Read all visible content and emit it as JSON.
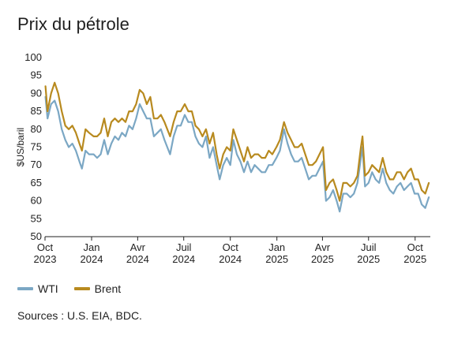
{
  "title": "Prix du pétrole",
  "source": "Sources : U.S. EIA, BDC.",
  "legend": {
    "wti": "WTI",
    "brent": "Brent"
  },
  "colors": {
    "wti": "#7ba7c4",
    "brent": "#b88a1f",
    "axis": "#222222"
  },
  "chart_data": {
    "type": "line",
    "title": "Prix du pétrole",
    "xlabel": "",
    "ylabel": "$US/baril",
    "ylim": [
      50,
      100
    ],
    "yticks": [
      50,
      55,
      60,
      65,
      70,
      75,
      80,
      85,
      90,
      95,
      100
    ],
    "xlim": [
      "2023-10-01",
      "2025-10-31"
    ],
    "xticks": [
      {
        "date": "2023-10-01",
        "line1": "Oct",
        "line2": "2023"
      },
      {
        "date": "2024-01-01",
        "line1": "Jan",
        "line2": "2024"
      },
      {
        "date": "2024-04-01",
        "line1": "Avr",
        "line2": "2024"
      },
      {
        "date": "2024-07-01",
        "line1": "Juil",
        "line2": "2024"
      },
      {
        "date": "2024-10-01",
        "line1": "Oct",
        "line2": "2024"
      },
      {
        "date": "2025-01-01",
        "line1": "Jan",
        "line2": "2025"
      },
      {
        "date": "2025-04-01",
        "line1": "Avr",
        "line2": "2025"
      },
      {
        "date": "2025-07-01",
        "line1": "Juil",
        "line2": "2025"
      },
      {
        "date": "2025-10-01",
        "line1": "Oct",
        "line2": "2025"
      }
    ],
    "grid": false,
    "legend_position": "bottom-left",
    "series": [
      {
        "name": "WTI",
        "color": "#7ba7c4",
        "points": [
          [
            "2023-10-02",
            89
          ],
          [
            "2023-10-06",
            83
          ],
          [
            "2023-10-13",
            87
          ],
          [
            "2023-10-20",
            88
          ],
          [
            "2023-10-27",
            85
          ],
          [
            "2023-11-03",
            80
          ],
          [
            "2023-11-10",
            77
          ],
          [
            "2023-11-17",
            75
          ],
          [
            "2023-11-24",
            76
          ],
          [
            "2023-12-01",
            74
          ],
          [
            "2023-12-08",
            71
          ],
          [
            "2023-12-13",
            69
          ],
          [
            "2023-12-20",
            74
          ],
          [
            "2023-12-27",
            73
          ],
          [
            "2024-01-05",
            73
          ],
          [
            "2024-01-12",
            72
          ],
          [
            "2024-01-19",
            73
          ],
          [
            "2024-01-26",
            77
          ],
          [
            "2024-02-02",
            73
          ],
          [
            "2024-02-09",
            76
          ],
          [
            "2024-02-16",
            78
          ],
          [
            "2024-02-23",
            77
          ],
          [
            "2024-03-01",
            79
          ],
          [
            "2024-03-08",
            78
          ],
          [
            "2024-03-15",
            81
          ],
          [
            "2024-03-22",
            80
          ],
          [
            "2024-03-29",
            83
          ],
          [
            "2024-04-05",
            87
          ],
          [
            "2024-04-12",
            85
          ],
          [
            "2024-04-19",
            83
          ],
          [
            "2024-04-26",
            83
          ],
          [
            "2024-05-03",
            78
          ],
          [
            "2024-05-10",
            79
          ],
          [
            "2024-05-17",
            80
          ],
          [
            "2024-05-24",
            77
          ],
          [
            "2024-06-04",
            73
          ],
          [
            "2024-06-11",
            78
          ],
          [
            "2024-06-18",
            81
          ],
          [
            "2024-06-25",
            81
          ],
          [
            "2024-07-03",
            84
          ],
          [
            "2024-07-10",
            82
          ],
          [
            "2024-07-17",
            82
          ],
          [
            "2024-07-24",
            78
          ],
          [
            "2024-07-31",
            76
          ],
          [
            "2024-08-07",
            75
          ],
          [
            "2024-08-14",
            78
          ],
          [
            "2024-08-21",
            72
          ],
          [
            "2024-08-28",
            75
          ],
          [
            "2024-09-04",
            70
          ],
          [
            "2024-09-10",
            66
          ],
          [
            "2024-09-17",
            70
          ],
          [
            "2024-09-24",
            72
          ],
          [
            "2024-10-01",
            70
          ],
          [
            "2024-10-07",
            77
          ],
          [
            "2024-10-14",
            73
          ],
          [
            "2024-10-21",
            71
          ],
          [
            "2024-10-28",
            68
          ],
          [
            "2024-11-04",
            71
          ],
          [
            "2024-11-11",
            68
          ],
          [
            "2024-11-18",
            70
          ],
          [
            "2024-11-25",
            69
          ],
          [
            "2024-12-02",
            68
          ],
          [
            "2024-12-09",
            68
          ],
          [
            "2024-12-16",
            70
          ],
          [
            "2024-12-23",
            70
          ],
          [
            "2024-12-31",
            72
          ],
          [
            "2025-01-07",
            74
          ],
          [
            "2025-01-15",
            80
          ],
          [
            "2025-01-22",
            76
          ],
          [
            "2025-01-29",
            73
          ],
          [
            "2025-02-05",
            71
          ],
          [
            "2025-02-12",
            71
          ],
          [
            "2025-02-19",
            72
          ],
          [
            "2025-02-26",
            69
          ],
          [
            "2025-03-05",
            66
          ],
          [
            "2025-03-12",
            67
          ],
          [
            "2025-03-19",
            67
          ],
          [
            "2025-03-26",
            69
          ],
          [
            "2025-04-02",
            71
          ],
          [
            "2025-04-08",
            60
          ],
          [
            "2025-04-15",
            61
          ],
          [
            "2025-04-22",
            63
          ],
          [
            "2025-04-29",
            60
          ],
          [
            "2025-05-05",
            57
          ],
          [
            "2025-05-12",
            62
          ],
          [
            "2025-05-19",
            62
          ],
          [
            "2025-05-26",
            61
          ],
          [
            "2025-06-02",
            62
          ],
          [
            "2025-06-09",
            65
          ],
          [
            "2025-06-16",
            72
          ],
          [
            "2025-06-19",
            75
          ],
          [
            "2025-06-24",
            64
          ],
          [
            "2025-07-01",
            65
          ],
          [
            "2025-07-08",
            68
          ],
          [
            "2025-07-15",
            66
          ],
          [
            "2025-07-22",
            65
          ],
          [
            "2025-07-29",
            69
          ],
          [
            "2025-08-05",
            65
          ],
          [
            "2025-08-12",
            63
          ],
          [
            "2025-08-19",
            62
          ],
          [
            "2025-08-26",
            64
          ],
          [
            "2025-09-02",
            65
          ],
          [
            "2025-09-09",
            63
          ],
          [
            "2025-09-16",
            64
          ],
          [
            "2025-09-23",
            65
          ],
          [
            "2025-09-30",
            62
          ],
          [
            "2025-10-07",
            62
          ],
          [
            "2025-10-14",
            59
          ],
          [
            "2025-10-21",
            58
          ],
          [
            "2025-10-28",
            61
          ]
        ]
      },
      {
        "name": "Brent",
        "color": "#b88a1f",
        "points": [
          [
            "2023-10-02",
            92
          ],
          [
            "2023-10-06",
            85
          ],
          [
            "2023-10-13",
            90
          ],
          [
            "2023-10-20",
            93
          ],
          [
            "2023-10-27",
            90
          ],
          [
            "2023-11-03",
            85
          ],
          [
            "2023-11-10",
            81
          ],
          [
            "2023-11-17",
            80
          ],
          [
            "2023-11-24",
            81
          ],
          [
            "2023-12-01",
            79
          ],
          [
            "2023-12-08",
            76
          ],
          [
            "2023-12-13",
            74
          ],
          [
            "2023-12-20",
            80
          ],
          [
            "2023-12-27",
            79
          ],
          [
            "2024-01-05",
            78
          ],
          [
            "2024-01-12",
            78
          ],
          [
            "2024-01-19",
            79
          ],
          [
            "2024-01-26",
            83
          ],
          [
            "2024-02-02",
            78
          ],
          [
            "2024-02-09",
            82
          ],
          [
            "2024-02-16",
            83
          ],
          [
            "2024-02-23",
            82
          ],
          [
            "2024-03-01",
            83
          ],
          [
            "2024-03-08",
            82
          ],
          [
            "2024-03-15",
            85
          ],
          [
            "2024-03-22",
            85
          ],
          [
            "2024-03-29",
            87
          ],
          [
            "2024-04-05",
            91
          ],
          [
            "2024-04-12",
            90
          ],
          [
            "2024-04-19",
            87
          ],
          [
            "2024-04-26",
            89
          ],
          [
            "2024-05-03",
            83
          ],
          [
            "2024-05-10",
            83
          ],
          [
            "2024-05-17",
            84
          ],
          [
            "2024-05-24",
            82
          ],
          [
            "2024-06-04",
            78
          ],
          [
            "2024-06-11",
            82
          ],
          [
            "2024-06-18",
            85
          ],
          [
            "2024-06-25",
            85
          ],
          [
            "2024-07-03",
            87
          ],
          [
            "2024-07-10",
            85
          ],
          [
            "2024-07-17",
            85
          ],
          [
            "2024-07-24",
            81
          ],
          [
            "2024-07-31",
            80
          ],
          [
            "2024-08-07",
            78
          ],
          [
            "2024-08-14",
            80
          ],
          [
            "2024-08-21",
            76
          ],
          [
            "2024-08-28",
            79
          ],
          [
            "2024-09-04",
            73
          ],
          [
            "2024-09-10",
            69
          ],
          [
            "2024-09-17",
            73
          ],
          [
            "2024-09-24",
            75
          ],
          [
            "2024-10-01",
            74
          ],
          [
            "2024-10-07",
            80
          ],
          [
            "2024-10-14",
            77
          ],
          [
            "2024-10-21",
            74
          ],
          [
            "2024-10-28",
            71
          ],
          [
            "2024-11-04",
            75
          ],
          [
            "2024-11-11",
            72
          ],
          [
            "2024-11-18",
            73
          ],
          [
            "2024-11-25",
            73
          ],
          [
            "2024-12-02",
            72
          ],
          [
            "2024-12-09",
            72
          ],
          [
            "2024-12-16",
            74
          ],
          [
            "2024-12-23",
            73
          ],
          [
            "2024-12-31",
            75
          ],
          [
            "2025-01-07",
            77
          ],
          [
            "2025-01-15",
            82
          ],
          [
            "2025-01-22",
            79
          ],
          [
            "2025-01-29",
            77
          ],
          [
            "2025-02-05",
            75
          ],
          [
            "2025-02-12",
            75
          ],
          [
            "2025-02-19",
            76
          ],
          [
            "2025-02-26",
            73
          ],
          [
            "2025-03-05",
            70
          ],
          [
            "2025-03-12",
            70
          ],
          [
            "2025-03-19",
            71
          ],
          [
            "2025-03-26",
            73
          ],
          [
            "2025-04-02",
            75
          ],
          [
            "2025-04-08",
            63
          ],
          [
            "2025-04-15",
            65
          ],
          [
            "2025-04-22",
            66
          ],
          [
            "2025-04-29",
            63
          ],
          [
            "2025-05-05",
            60
          ],
          [
            "2025-05-12",
            65
          ],
          [
            "2025-05-19",
            65
          ],
          [
            "2025-05-26",
            64
          ],
          [
            "2025-06-02",
            65
          ],
          [
            "2025-06-09",
            67
          ],
          [
            "2025-06-16",
            75
          ],
          [
            "2025-06-19",
            78
          ],
          [
            "2025-06-24",
            67
          ],
          [
            "2025-07-01",
            68
          ],
          [
            "2025-07-08",
            70
          ],
          [
            "2025-07-15",
            69
          ],
          [
            "2025-07-22",
            68
          ],
          [
            "2025-07-29",
            72
          ],
          [
            "2025-08-05",
            68
          ],
          [
            "2025-08-12",
            66
          ],
          [
            "2025-08-19",
            66
          ],
          [
            "2025-08-26",
            68
          ],
          [
            "2025-09-02",
            68
          ],
          [
            "2025-09-09",
            66
          ],
          [
            "2025-09-16",
            68
          ],
          [
            "2025-09-23",
            69
          ],
          [
            "2025-09-30",
            66
          ],
          [
            "2025-10-07",
            66
          ],
          [
            "2025-10-14",
            63
          ],
          [
            "2025-10-21",
            62
          ],
          [
            "2025-10-28",
            65
          ]
        ]
      }
    ]
  }
}
